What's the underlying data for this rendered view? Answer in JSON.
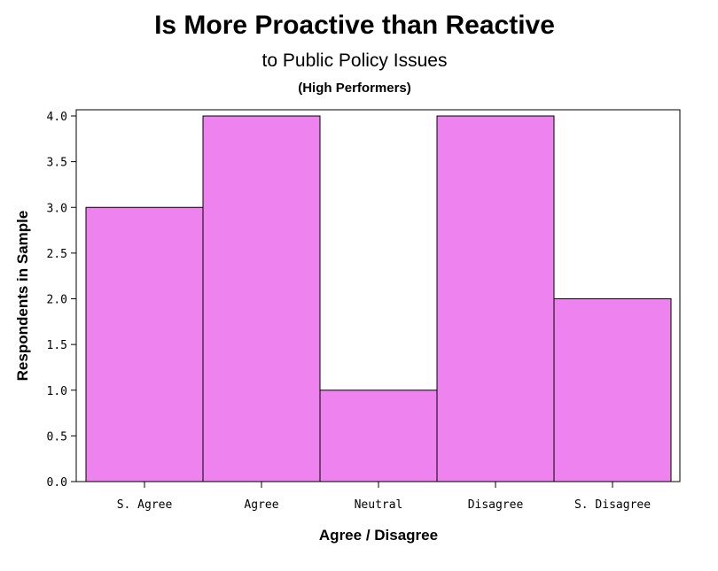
{
  "chart_data": {
    "type": "bar",
    "title": "Is More Proactive than Reactive",
    "subtitle": "to Public Policy Issues",
    "subtitle2": "(High Performers)",
    "xlabel": "Agree / Disagree",
    "ylabel": "Respondents in Sample",
    "categories": [
      "S. Agree",
      "Agree",
      "Neutral",
      "Disagree",
      "S. Disagree"
    ],
    "values": [
      3,
      4,
      1,
      4,
      2
    ],
    "ylim": [
      0,
      4
    ],
    "yticks": [
      "0.0",
      "0.5",
      "1.0",
      "1.5",
      "2.0",
      "2.5",
      "3.0",
      "3.5",
      "4.0"
    ],
    "bar_color": "#ee82ee",
    "grid": false,
    "legend": "none"
  }
}
